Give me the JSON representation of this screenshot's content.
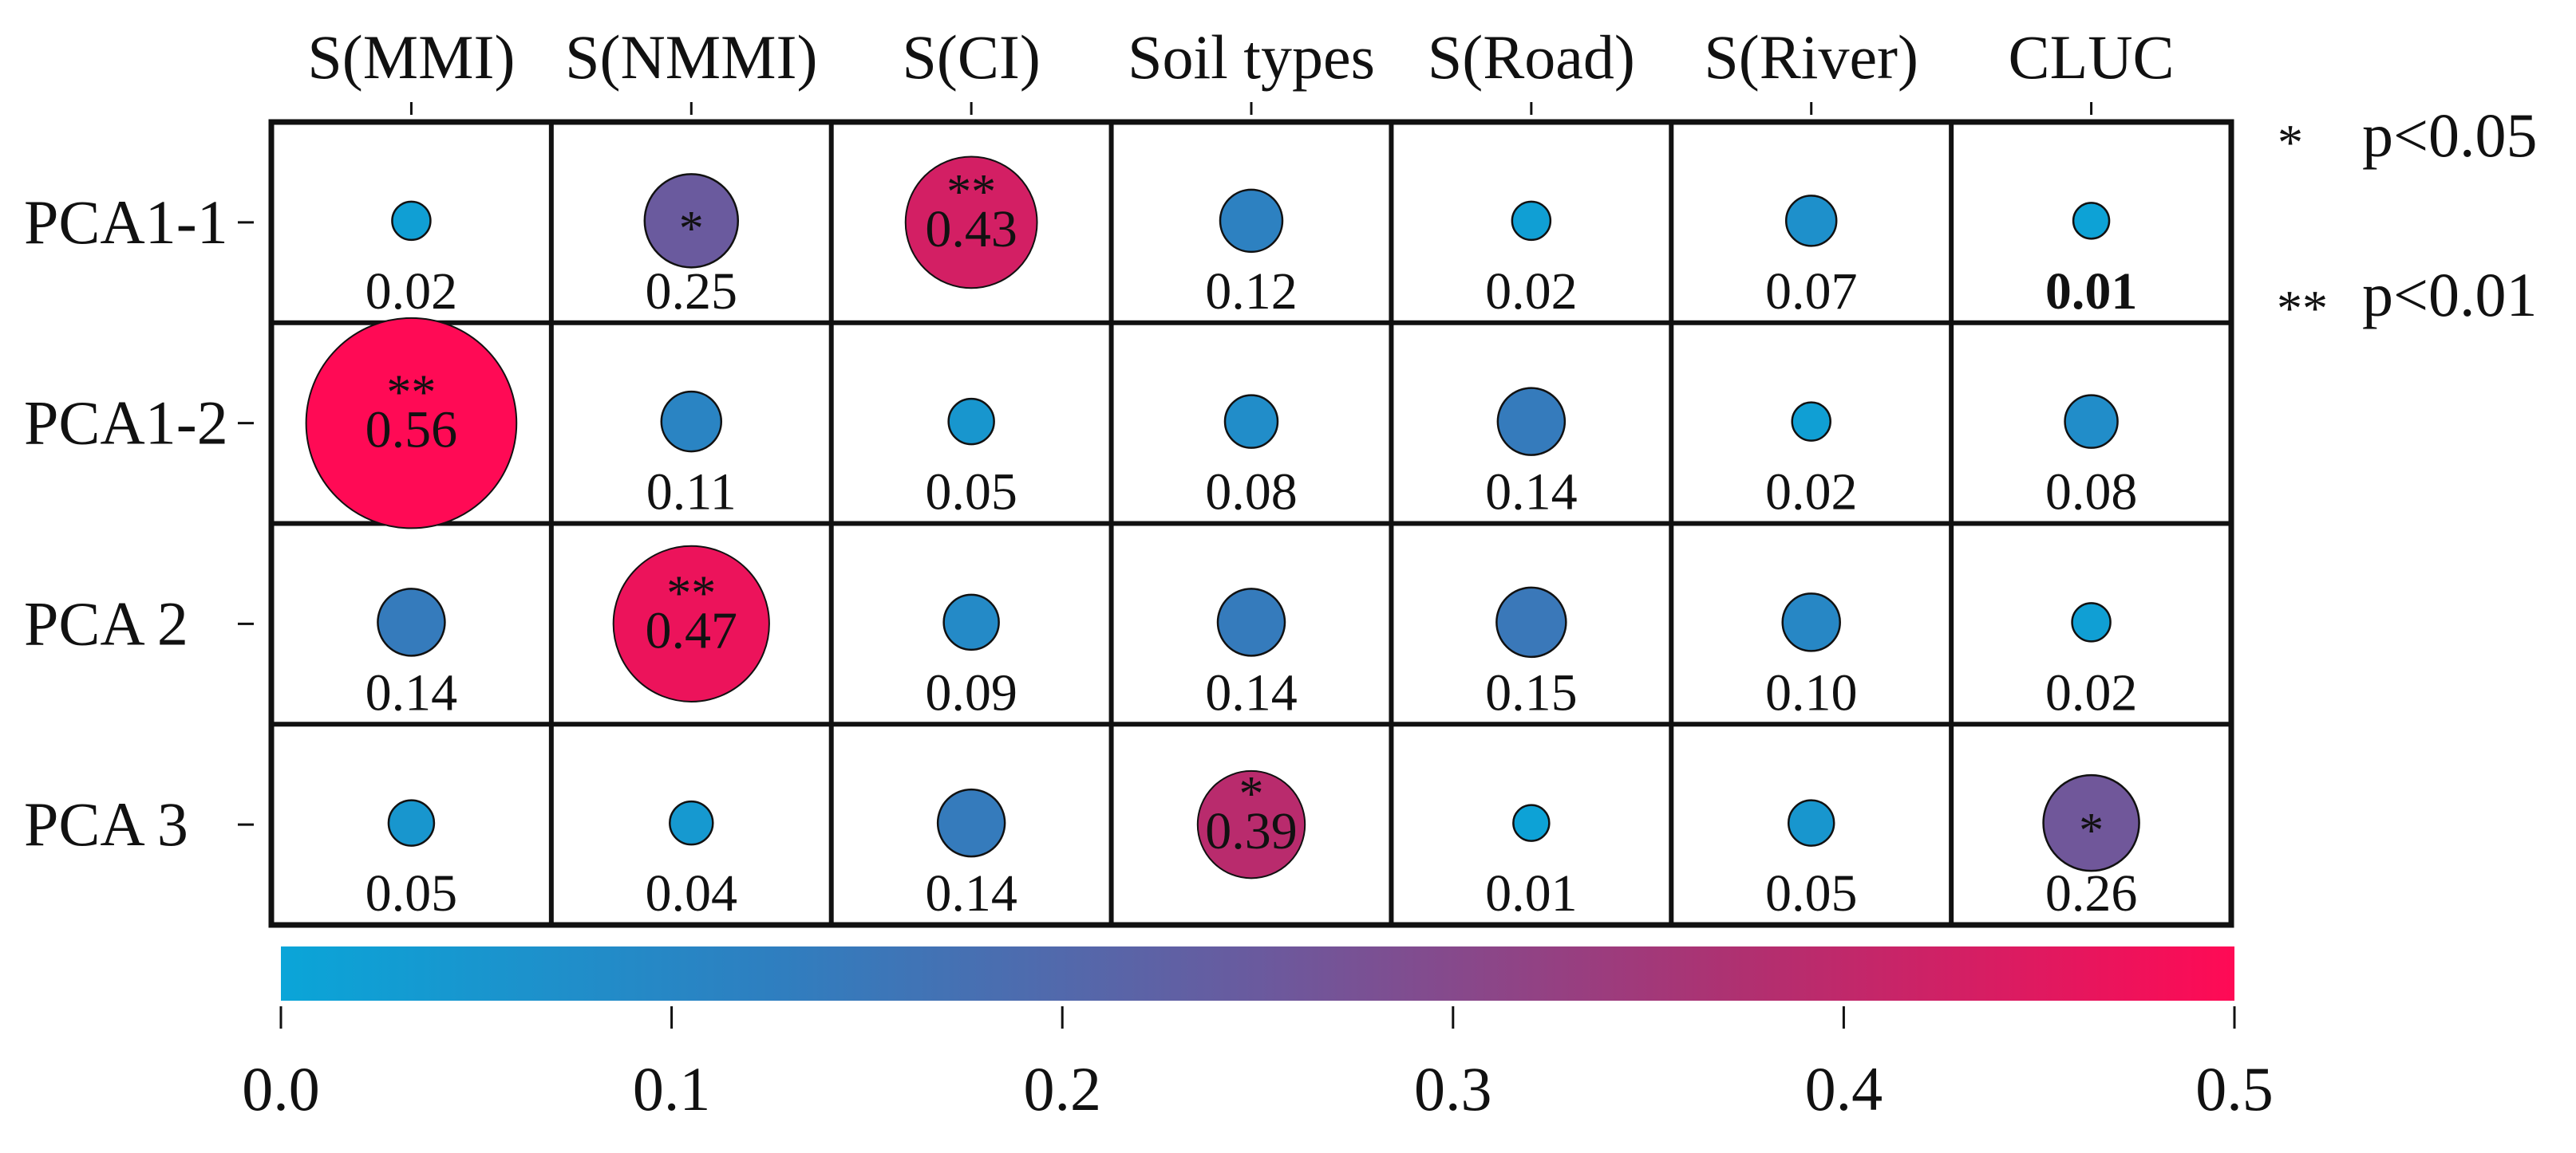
{
  "chart_data": {
    "type": "heatmap",
    "columns": [
      "S(MMI)",
      "S(NMMI)",
      "S(CI)",
      "Soil types",
      "S(Road)",
      "S(River)",
      "CLUC"
    ],
    "rows": [
      "PCA1-1",
      "PCA1-2",
      "PCA 2",
      "PCA 3"
    ],
    "values": [
      [
        0.02,
        0.25,
        0.43,
        0.12,
        0.02,
        0.07,
        0.01
      ],
      [
        0.56,
        0.11,
        0.05,
        0.08,
        0.14,
        0.02,
        0.08
      ],
      [
        0.14,
        0.47,
        0.09,
        0.14,
        0.15,
        0.1,
        0.02
      ],
      [
        0.05,
        0.04,
        0.14,
        0.39,
        0.01,
        0.05,
        0.26
      ]
    ],
    "value_labels": [
      [
        "0.02",
        "0.25",
        "0.43",
        "0.12",
        "0.02",
        "0.07",
        "0.01"
      ],
      [
        "0.56",
        "0.11",
        "0.05",
        "0.08",
        "0.14",
        "0.02",
        "0.08"
      ],
      [
        "0.14",
        "0.47",
        "0.09",
        "0.14",
        "0.15",
        "0.10",
        "0.02"
      ],
      [
        "0.05",
        "0.04",
        "0.14",
        "0.39",
        "0.01",
        "0.05",
        "0.26"
      ]
    ],
    "significance": [
      [
        "",
        "*",
        "**",
        "",
        "",
        "",
        ""
      ],
      [
        "**",
        "",
        "",
        "",
        "",
        "",
        ""
      ],
      [
        "",
        "**",
        "",
        "",
        "",
        "",
        ""
      ],
      [
        "",
        "",
        "",
        "*",
        "",
        "",
        "*"
      ]
    ],
    "bold_labels": [
      [
        0,
        6
      ]
    ],
    "legend": [
      {
        "symbol": "*",
        "label": "p<0.05"
      },
      {
        "symbol": "**",
        "label": "p<0.01"
      }
    ],
    "colorbar": {
      "range": [
        0.0,
        0.5
      ],
      "ticks": [
        0.0,
        0.1,
        0.2,
        0.3,
        0.4,
        0.5
      ],
      "tick_labels": [
        "0.0",
        "0.1",
        "0.2",
        "0.3",
        "0.4",
        "0.5"
      ],
      "colors": [
        "#0aa5d8",
        "#2e7fc0",
        "#6a5a9e",
        "#b03070",
        "#ff0a55"
      ]
    }
  }
}
